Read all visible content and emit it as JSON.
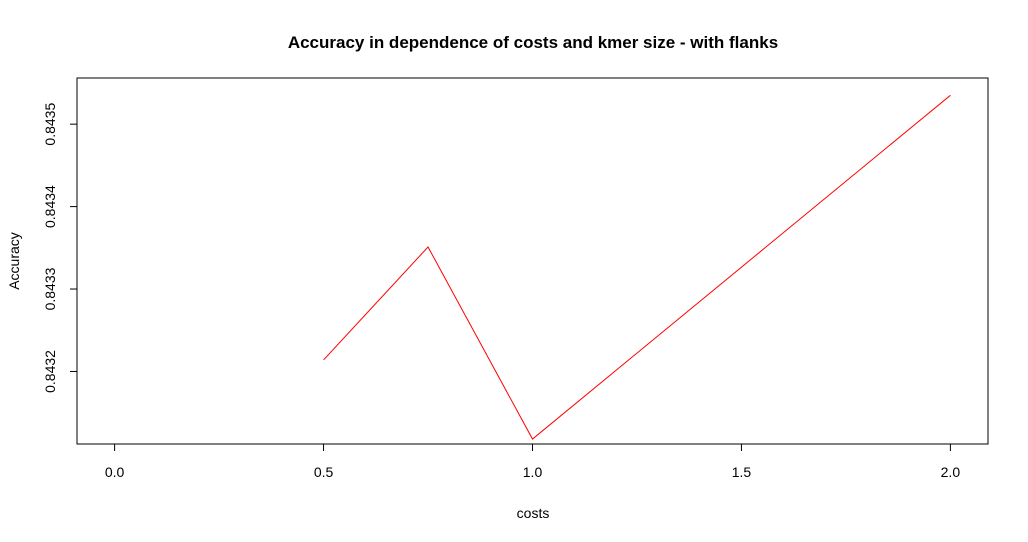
{
  "chart_data": {
    "type": "line",
    "title": "Accuracy in dependence of costs and kmer size - with flanks",
    "xlabel": "costs",
    "ylabel": "Accuracy",
    "xlim": [
      -0.09,
      2.09
    ],
    "ylim": [
      0.843112,
      0.843556
    ],
    "x_ticks": [
      "0.0",
      "0.5",
      "1.0",
      "1.5",
      "2.0"
    ],
    "y_ticks": [
      "0.8432",
      "0.8433",
      "0.8434",
      "0.8435"
    ],
    "grid": false,
    "series": [
      {
        "color": "#ff0000",
        "x": [
          0.5,
          0.75,
          1.0,
          2.0
        ],
        "y": [
          0.843214,
          0.843351,
          0.843118,
          0.843535
        ]
      }
    ]
  }
}
